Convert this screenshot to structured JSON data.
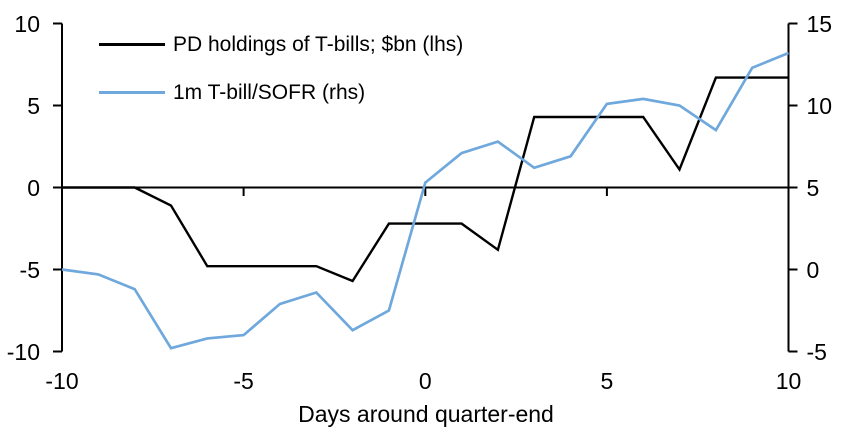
{
  "chart_data": {
    "type": "line",
    "title": "",
    "xlabel": "Days around quarter-end",
    "grid": false,
    "background": "#ffffff",
    "text_color": "#000000",
    "legend_position": "top-left-inside",
    "x_axis": {
      "range": [
        -10,
        10
      ],
      "ticks": [
        -10,
        -5,
        0,
        5,
        10
      ]
    },
    "left_axis": {
      "range": [
        -10,
        10
      ],
      "ticks": [
        10,
        5,
        0,
        -5,
        -10
      ]
    },
    "right_axis": {
      "range": [
        -5,
        15
      ],
      "ticks": [
        15,
        10,
        5,
        0,
        -5
      ]
    },
    "x": [
      -10,
      -9,
      -8,
      -7,
      -6,
      -5,
      -4,
      -3,
      -2,
      -1,
      0,
      1,
      2,
      3,
      4,
      5,
      6,
      7,
      8,
      9,
      10
    ],
    "series": [
      {
        "name": "PD holdings of T-bills; $bn (lhs)",
        "axis": "left",
        "color": "#000000",
        "stroke_width": 2.4,
        "values": [
          0,
          0,
          0,
          -1.1,
          -4.8,
          -4.8,
          -4.8,
          -4.8,
          -5.7,
          -2.2,
          -2.2,
          -2.2,
          -3.8,
          4.3,
          4.3,
          4.3,
          4.3,
          1.1,
          6.7,
          6.7,
          6.7
        ]
      },
      {
        "name": "1m T-bill/SOFR (rhs)",
        "axis": "right",
        "color": "#6fa8dc",
        "stroke_width": 2.7,
        "values": [
          0.0,
          -0.3,
          -1.2,
          -4.8,
          -4.2,
          -4.0,
          -2.1,
          -1.4,
          -3.7,
          -2.5,
          5.3,
          7.1,
          7.8,
          6.2,
          6.9,
          10.1,
          10.4,
          10.0,
          8.5,
          12.3,
          13.2
        ]
      }
    ]
  }
}
